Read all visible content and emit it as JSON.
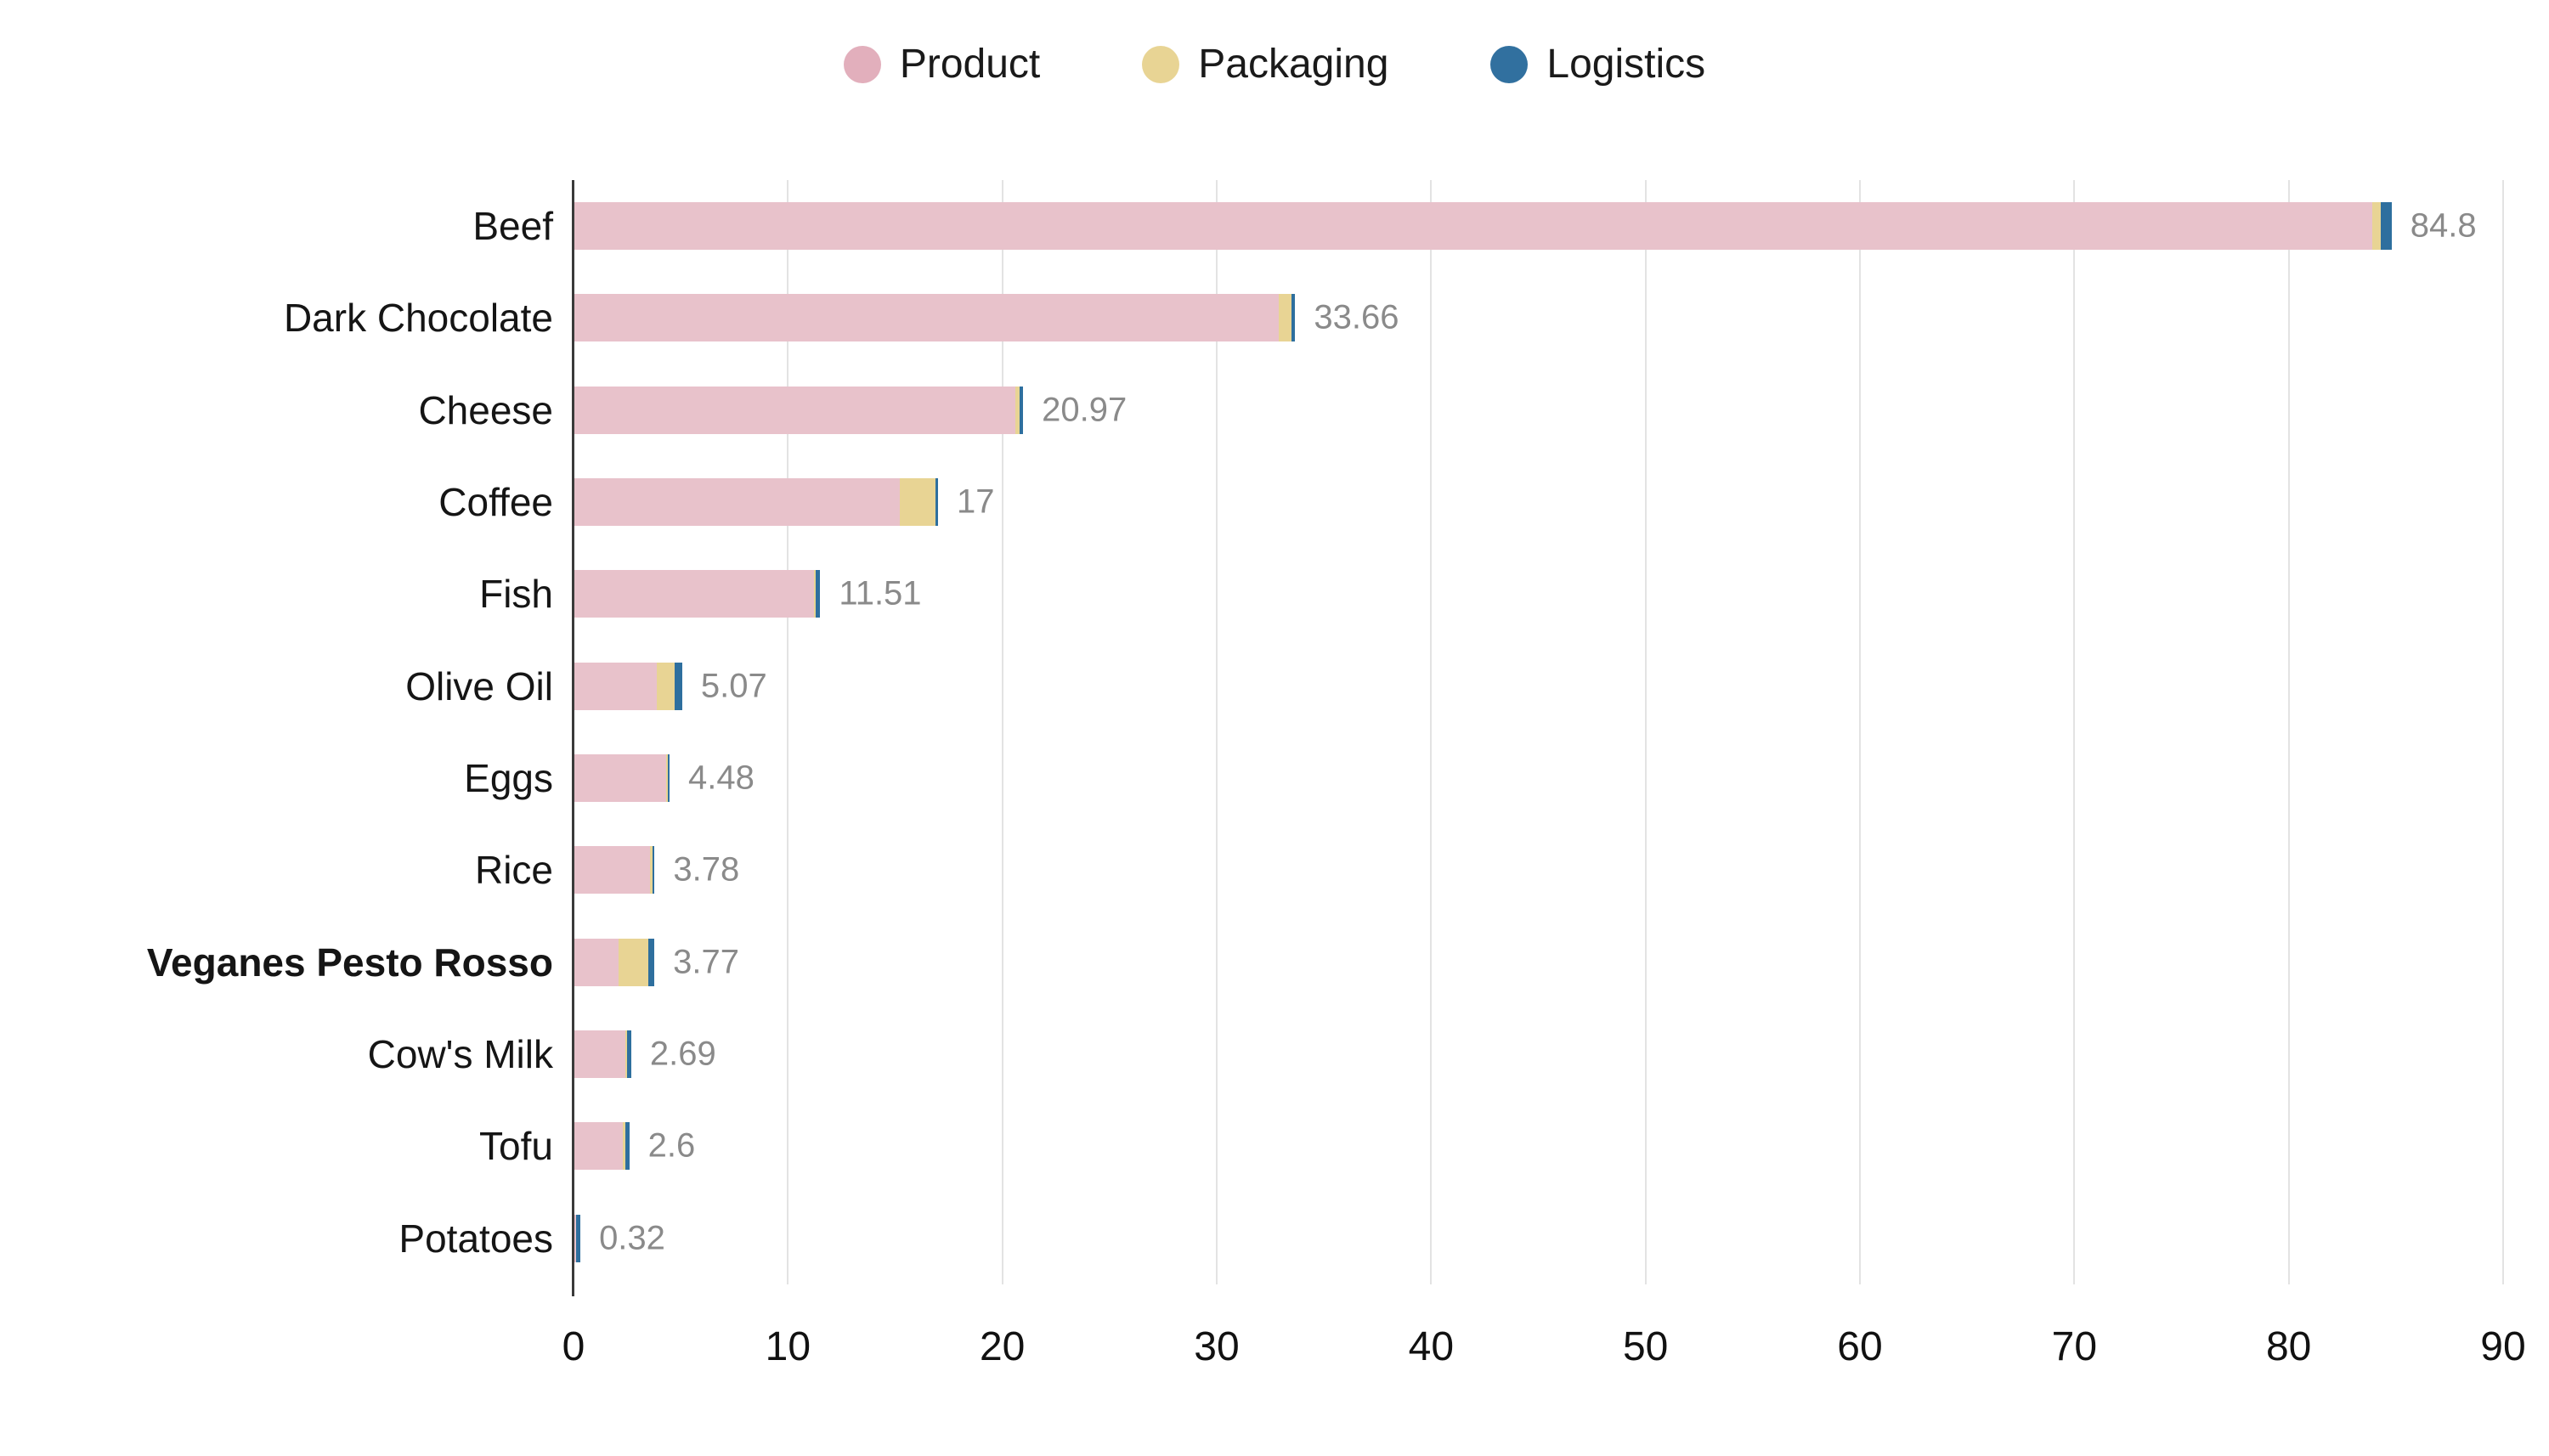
{
  "legend": {
    "position": "top-center",
    "items": [
      {
        "label": "Product",
        "color": "#e2afbc"
      },
      {
        "label": "Packaging",
        "color": "#e8d494"
      },
      {
        "label": "Logistics",
        "color": "#31709f"
      }
    ]
  },
  "chart_data": {
    "type": "bar",
    "orientation": "horizontal",
    "stacked": true,
    "title": "",
    "xlabel": "",
    "ylabel": "",
    "grid": true,
    "legend_position": "top",
    "xlim": [
      0,
      90
    ],
    "x_ticks": [
      0,
      10,
      20,
      30,
      40,
      50,
      60,
      70,
      80,
      90
    ],
    "categories": [
      "Beef",
      "Dark Chocolate",
      "Cheese",
      "Coffee",
      "Fish",
      "Olive Oil",
      "Eggs",
      "Rice",
      "Veganes Pesto Rosso",
      "Cow's Milk",
      "Tofu",
      "Potatoes"
    ],
    "emphasized_category": "Veganes Pesto Rosso",
    "series": [
      {
        "name": "Product",
        "color": "#e8c2cb",
        "values": [
          83.9,
          32.9,
          20.6,
          15.2,
          11.2,
          3.9,
          4.3,
          3.55,
          2.1,
          2.4,
          2.3,
          0.1
        ]
      },
      {
        "name": "Packaging",
        "color": "#e8d494",
        "values": [
          0.4,
          0.6,
          0.2,
          1.7,
          0.1,
          0.82,
          0.1,
          0.15,
          1.4,
          0.1,
          0.1,
          0.02
        ]
      },
      {
        "name": "Logistics",
        "color": "#2e6f9e",
        "values": [
          0.5,
          0.16,
          0.17,
          0.1,
          0.21,
          0.35,
          0.08,
          0.08,
          0.27,
          0.19,
          0.2,
          0.2
        ]
      }
    ],
    "totals": [
      84.8,
      33.66,
      20.97,
      17,
      11.51,
      5.07,
      4.48,
      3.78,
      3.77,
      2.69,
      2.6,
      0.32
    ],
    "total_labels": [
      "84.8",
      "33.66",
      "20.97",
      "17",
      "11.51",
      "5.07",
      "4.48",
      "3.78",
      "3.77",
      "2.69",
      "2.6",
      "0.32"
    ]
  },
  "style": {
    "grid_color": "#e3e3e3",
    "axis_color": "#3a3a3a",
    "value_label_color": "#8a8a8a",
    "category_label_color": "#151515",
    "tick_label_color": "#111111",
    "background": "#ffffff"
  }
}
